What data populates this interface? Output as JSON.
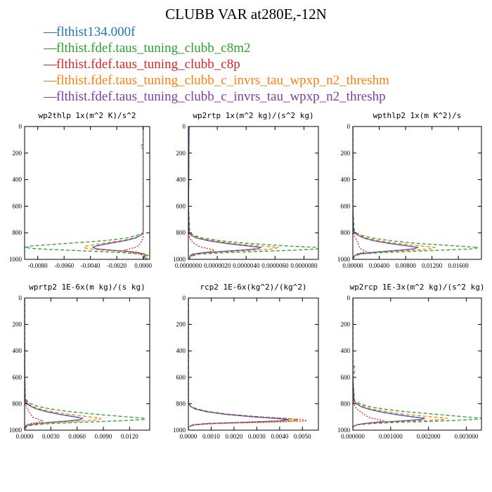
{
  "title": "CLUBB VAR at280E,-12N",
  "legend": [
    {
      "label": "flthist134.000f",
      "color": "#1f77b4",
      "style": "solid"
    },
    {
      "label": "flthist.fdef.taus_tuning_clubb_c8m2",
      "color": "#2ca02c",
      "style": "dashed"
    },
    {
      "label": "flthist.fdef.taus_tuning_clubb_c8p",
      "color": "#d62728",
      "style": "dotted"
    },
    {
      "label": "flthist.fdef.taus_tuning_clubb_c_invrs_tau_wpxp_n2_threshm",
      "color": "#ff7f0e",
      "style": "dashed"
    },
    {
      "label": "flthist.fdef.taus_tuning_clubb_c_invrs_tau_wpxp_n2_threshp",
      "color": "#7b3fa0",
      "style": "dashed"
    }
  ],
  "chart_data": [
    {
      "type": "line",
      "title": "wp2thlp  1x(m^2 K)/s^2",
      "xlim": [
        -0.009,
        0.0005
      ],
      "ylim": [
        1000,
        0
      ],
      "xticks": [
        "-0.0080",
        "-0.0060",
        "-0.0040",
        "-0.0020",
        "0.0000"
      ],
      "xtick_values": [
        -0.008,
        -0.006,
        -0.004,
        -0.002,
        0.0
      ],
      "yticks": [
        "0",
        "200",
        "400",
        "600",
        "800",
        "1000"
      ],
      "y": [
        0,
        130,
        150,
        170,
        300,
        500,
        700,
        800,
        820,
        840,
        860,
        880,
        900,
        910,
        920,
        930,
        940,
        950,
        960,
        970,
        980,
        1000
      ],
      "series": [
        {
          "values": [
            0,
            0,
            0,
            0,
            0,
            0,
            0,
            0,
            -0.0002,
            -0.0006,
            -0.0014,
            -0.0026,
            -0.0036,
            -0.0038,
            -0.0036,
            -0.0026,
            -0.0012,
            -0.0003,
            0.0001,
            0.0002,
            0.0001,
            0
          ]
        },
        {
          "values": [
            0,
            0,
            -0.0002,
            0,
            0,
            0,
            0,
            0,
            -0.0005,
            -0.0013,
            -0.003,
            -0.0058,
            -0.0086,
            -0.009,
            -0.0082,
            -0.006,
            -0.0035,
            -0.0015,
            -0.0002,
            0.0003,
            0.0004,
            0.0002
          ]
        },
        {
          "values": [
            0,
            0,
            0,
            0,
            0,
            0,
            0,
            0,
            0,
            0,
            -0.0001,
            -0.0002,
            -0.0004,
            -0.0006,
            -0.001,
            -0.0014,
            -0.0012,
            -0.0008,
            -0.0003,
            0,
            0.0002,
            0.0001
          ]
        },
        {
          "values": [
            0,
            0,
            0,
            0,
            0,
            0,
            0,
            0,
            -0.0002,
            -0.0007,
            -0.0017,
            -0.0031,
            -0.0043,
            -0.0045,
            -0.0042,
            -0.0031,
            -0.0016,
            -0.0005,
            0.0001,
            0.0004,
            0.0002,
            0.0001
          ]
        },
        {
          "values": [
            0,
            0,
            0,
            0,
            0,
            0,
            0,
            0,
            -0.0002,
            -0.0006,
            -0.0014,
            -0.0026,
            -0.0036,
            -0.0038,
            -0.0036,
            -0.0026,
            -0.0012,
            -0.0003,
            0.0001,
            0.0002,
            0.0001,
            0
          ]
        }
      ]
    },
    {
      "type": "line",
      "title": "wp2rtp  1x(m^2 kg)/(s^2 kg)",
      "xlim": [
        0,
        9e-06
      ],
      "ylim": [
        1000,
        0
      ],
      "xticks": [
        "0.0000000",
        "0.0000020",
        "0.0000040",
        "0.0000060",
        "0.0000080"
      ],
      "xtick_values": [
        0,
        2e-06,
        4e-06,
        6e-06,
        8e-06
      ],
      "yticks": [
        "0",
        "200",
        "400",
        "600",
        "800",
        "1000"
      ],
      "y": [
        0,
        300,
        600,
        800,
        820,
        840,
        860,
        880,
        900,
        910,
        920,
        930,
        940,
        950,
        960,
        975,
        990,
        1000
      ],
      "series": [
        {
          "values": [
            5e-08,
            3e-08,
            1e-08,
            5e-08,
            2e-07,
            6e-07,
            1.4e-06,
            2.6e-06,
            4.2e-06,
            5e-06,
            4.8e-06,
            3.8e-06,
            2.4e-06,
            1.1e-06,
            3e-07,
            1e-07,
            1e-07,
            5e-08
          ]
        },
        {
          "values": [
            5e-08,
            3e-08,
            1e-08,
            1e-07,
            4e-07,
            1e-06,
            2.2e-06,
            4.2e-06,
            7e-06,
            8.8e-06,
            9.2e-06,
            7.5e-06,
            5e-06,
            2.5e-06,
            8e-07,
            2e-07,
            1e-07,
            5e-08
          ]
        },
        {
          "values": [
            5e-08,
            3e-08,
            1e-08,
            2e-08,
            5e-08,
            1e-07,
            2e-07,
            4e-07,
            7e-07,
            1e-06,
            1.4e-06,
            1.8e-06,
            1.6e-06,
            1e-06,
            5e-07,
            2e-07,
            1e-07,
            5e-08
          ]
        },
        {
          "values": [
            5e-08,
            3e-08,
            1e-08,
            7e-08,
            3e-07,
            7e-07,
            1.7e-06,
            3.1e-06,
            5.1e-06,
            6.2e-06,
            6e-06,
            4.8e-06,
            3e-06,
            1.4e-06,
            4e-07,
            1e-07,
            1e-07,
            5e-08
          ]
        },
        {
          "values": [
            5e-08,
            3e-08,
            1e-08,
            5e-08,
            2e-07,
            6e-07,
            1.4e-06,
            2.6e-06,
            4.2e-06,
            5e-06,
            4.8e-06,
            3.8e-06,
            2.4e-06,
            1.1e-06,
            3e-07,
            1e-07,
            1e-07,
            5e-08
          ]
        }
      ]
    },
    {
      "type": "line",
      "title": "wpthlp2  1x(m K^2)/s",
      "xlim": [
        0,
        0.0195
      ],
      "ylim": [
        1000,
        0
      ],
      "xticks": [
        "0.00000",
        "0.00400",
        "0.00800",
        "0.01200",
        "0.01600"
      ],
      "xtick_values": [
        0,
        0.004,
        0.008,
        0.012,
        0.016
      ],
      "yticks": [
        "0",
        "200",
        "400",
        "600",
        "800",
        "1000"
      ],
      "y": [
        0,
        300,
        600,
        780,
        800,
        820,
        840,
        860,
        880,
        900,
        910,
        920,
        930,
        940,
        950,
        960,
        975,
        990,
        1000
      ],
      "series": [
        {
          "values": [
            0,
            0,
            0,
            0.0001,
            0.0003,
            0.0008,
            0.0017,
            0.0032,
            0.0055,
            0.0085,
            0.0098,
            0.0094,
            0.0074,
            0.0048,
            0.0024,
            0.0008,
            0.0002,
            0.0001,
            0
          ]
        },
        {
          "values": [
            0,
            0,
            0,
            0.0002,
            0.0005,
            0.0014,
            0.003,
            0.0058,
            0.0098,
            0.016,
            0.019,
            0.0185,
            0.014,
            0.0088,
            0.0042,
            0.0012,
            0.0003,
            0.0001,
            0
          ]
        },
        {
          "values": [
            0,
            0,
            0,
            0,
            0.0001,
            0.0002,
            0.0004,
            0.0006,
            0.0008,
            0.0009,
            0.001,
            0.0012,
            0.0016,
            0.002,
            0.0014,
            0.0006,
            0.0002,
            0.0001,
            0
          ]
        },
        {
          "values": [
            0,
            0,
            0,
            0.0001,
            0.0004,
            0.001,
            0.0021,
            0.004,
            0.0068,
            0.0106,
            0.0124,
            0.012,
            0.0095,
            0.006,
            0.003,
            0.0009,
            0.0002,
            0.0001,
            0
          ]
        },
        {
          "values": [
            0,
            0,
            0,
            0.0001,
            0.0003,
            0.0008,
            0.0017,
            0.0032,
            0.0055,
            0.0085,
            0.0098,
            0.0094,
            0.0074,
            0.0048,
            0.0024,
            0.0008,
            0.0002,
            0.0001,
            0
          ]
        }
      ]
    },
    {
      "type": "line",
      "title": "wprtp2  1E-6x(m kg)/(s kg)",
      "xlim": [
        0,
        0.0143
      ],
      "ylim": [
        1000,
        0
      ],
      "xticks": [
        "0.0000",
        "0.0030",
        "0.0060",
        "0.0090",
        "0.0120"
      ],
      "xtick_values": [
        0,
        0.003,
        0.006,
        0.009,
        0.012
      ],
      "yticks": [
        "0",
        "200",
        "400",
        "600",
        "800",
        "1000"
      ],
      "y": [
        0,
        300,
        600,
        760,
        780,
        800,
        820,
        840,
        860,
        880,
        900,
        910,
        920,
        930,
        940,
        950,
        960,
        975,
        990,
        1000
      ],
      "series": [
        {
          "values": [
            0,
            0,
            2e-05,
            5e-05,
            0.0001,
            0.0003,
            0.0007,
            0.0014,
            0.0025,
            0.004,
            0.0058,
            0.0066,
            0.0064,
            0.005,
            0.003,
            0.0014,
            0.0004,
            0.0001,
            5e-05,
            0
          ]
        },
        {
          "values": [
            0,
            0,
            3e-05,
            0.0001,
            0.0003,
            0.0007,
            0.0015,
            0.003,
            0.0052,
            0.0082,
            0.0118,
            0.0138,
            0.0136,
            0.0106,
            0.0066,
            0.003,
            0.0009,
            0.0002,
            0.0001,
            0
          ]
        },
        {
          "values": [
            0,
            0,
            1e-05,
            3e-05,
            5e-05,
            0.0001,
            0.0002,
            0.0003,
            0.0005,
            0.0007,
            0.0009,
            0.0012,
            0.0017,
            0.0021,
            0.0015,
            0.0007,
            0.0002,
            0.0001,
            3e-05,
            0
          ]
        },
        {
          "values": [
            0,
            0,
            2e-05,
            7e-05,
            0.0002,
            0.0004,
            0.0009,
            0.0018,
            0.0032,
            0.0051,
            0.0075,
            0.0087,
            0.0085,
            0.0066,
            0.004,
            0.0018,
            0.0005,
            0.0001,
            5e-05,
            0
          ]
        },
        {
          "values": [
            0,
            0,
            2e-05,
            5e-05,
            0.0001,
            0.0003,
            0.0007,
            0.0014,
            0.0025,
            0.004,
            0.0058,
            0.0066,
            0.0064,
            0.005,
            0.003,
            0.0014,
            0.0004,
            0.0001,
            5e-05,
            0
          ]
        }
      ]
    },
    {
      "type": "line",
      "title": "rcp2  1E-6x(kg^2)/(kg^2)",
      "xlim": [
        0,
        0.0057
      ],
      "ylim": [
        1000,
        0
      ],
      "xticks": [
        "0.0000",
        "0.0010",
        "0.0020",
        "0.0030",
        "0.0040",
        "0.0050"
      ],
      "xtick_values": [
        0,
        0.001,
        0.002,
        0.003,
        0.004,
        0.005
      ],
      "yticks": [
        "0",
        "200",
        "400",
        "600",
        "800",
        "1000"
      ],
      "y": [
        0,
        300,
        600,
        800,
        820,
        840,
        860,
        880,
        900,
        910,
        920,
        930,
        940,
        950,
        960,
        975,
        1000
      ],
      "series": [
        {
          "values": [
            0,
            0,
            0,
            0,
            0.0001,
            0.0003,
            0.0008,
            0.0016,
            0.0029,
            0.0038,
            0.0044,
            0.004,
            0.0025,
            0.0008,
            0.0002,
            0,
            0
          ]
        },
        {
          "values": [
            0,
            0,
            0,
            0,
            0.0001,
            0.0004,
            0.0009,
            0.0018,
            0.0032,
            0.0042,
            0.0048,
            0.0044,
            0.0028,
            0.0009,
            0.0002,
            0,
            0
          ]
        },
        {
          "values": [
            0,
            0,
            0,
            0,
            0.0001,
            0.0003,
            0.0008,
            0.0017,
            0.0031,
            0.0041,
            0.005,
            0.0052,
            0.0036,
            0.0012,
            0.0003,
            0,
            0
          ]
        },
        {
          "values": [
            0,
            0,
            0,
            0,
            0.0001,
            0.0003,
            0.0008,
            0.0017,
            0.003,
            0.004,
            0.0047,
            0.0048,
            0.0031,
            0.001,
            0.0002,
            0,
            0
          ]
        },
        {
          "values": [
            0,
            0,
            0,
            0,
            0.0001,
            0.0003,
            0.0008,
            0.0016,
            0.0029,
            0.0038,
            0.0044,
            0.004,
            0.0025,
            0.0008,
            0.0002,
            0,
            0
          ]
        }
      ]
    },
    {
      "type": "line",
      "title": "wp2rcp  1E-3x(m^2 kg)/(s^2 kg)",
      "xlim": [
        0,
        0.0034
      ],
      "ylim": [
        1000,
        0
      ],
      "xticks": [
        "0.000000",
        "0.001000",
        "0.002000",
        "0.003000"
      ],
      "xtick_values": [
        0,
        0.001,
        0.002,
        0.003
      ],
      "yticks": [
        "0",
        "200",
        "400",
        "600",
        "800",
        "1000"
      ],
      "y": [
        0,
        500,
        520,
        540,
        560,
        600,
        780,
        800,
        820,
        840,
        860,
        880,
        900,
        910,
        920,
        930,
        940,
        950,
        960,
        975,
        1000
      ],
      "series": [
        {
          "values": [
            0,
            0,
            0,
            0,
            0,
            0,
            3e-05,
            0.0001,
            0.0002,
            0.0004,
            0.0007,
            0.0011,
            0.0016,
            0.0019,
            0.0018,
            0.0013,
            0.0007,
            0.0003,
            0.0001,
            0,
            0
          ]
        },
        {
          "values": [
            0,
            0,
            4e-05,
            6e-05,
            4e-05,
            0,
            5e-05,
            0.0002,
            0.0004,
            0.0008,
            0.0014,
            0.0022,
            0.003,
            0.0034,
            0.0032,
            0.0024,
            0.0013,
            0.0005,
            0.0001,
            0,
            0
          ]
        },
        {
          "values": [
            0,
            0,
            0,
            0,
            0,
            0,
            1e-05,
            3e-05,
            6e-05,
            0.0001,
            0.0002,
            0.0003,
            0.0004,
            0.0005,
            0.0007,
            0.0008,
            0.0006,
            0.0003,
            0.0001,
            0,
            0
          ]
        },
        {
          "values": [
            0,
            0,
            0,
            0,
            0,
            0,
            4e-05,
            0.0001,
            0.0003,
            0.0005,
            0.0009,
            0.0014,
            0.0021,
            0.0025,
            0.0024,
            0.0017,
            0.0009,
            0.0003,
            0.0001,
            0,
            0
          ]
        },
        {
          "values": [
            0,
            0,
            0,
            0,
            0,
            0,
            3e-05,
            0.0001,
            0.0002,
            0.0004,
            0.0007,
            0.0011,
            0.0016,
            0.0019,
            0.0018,
            0.0013,
            0.0007,
            0.0003,
            0.0001,
            0,
            0
          ]
        }
      ]
    }
  ]
}
